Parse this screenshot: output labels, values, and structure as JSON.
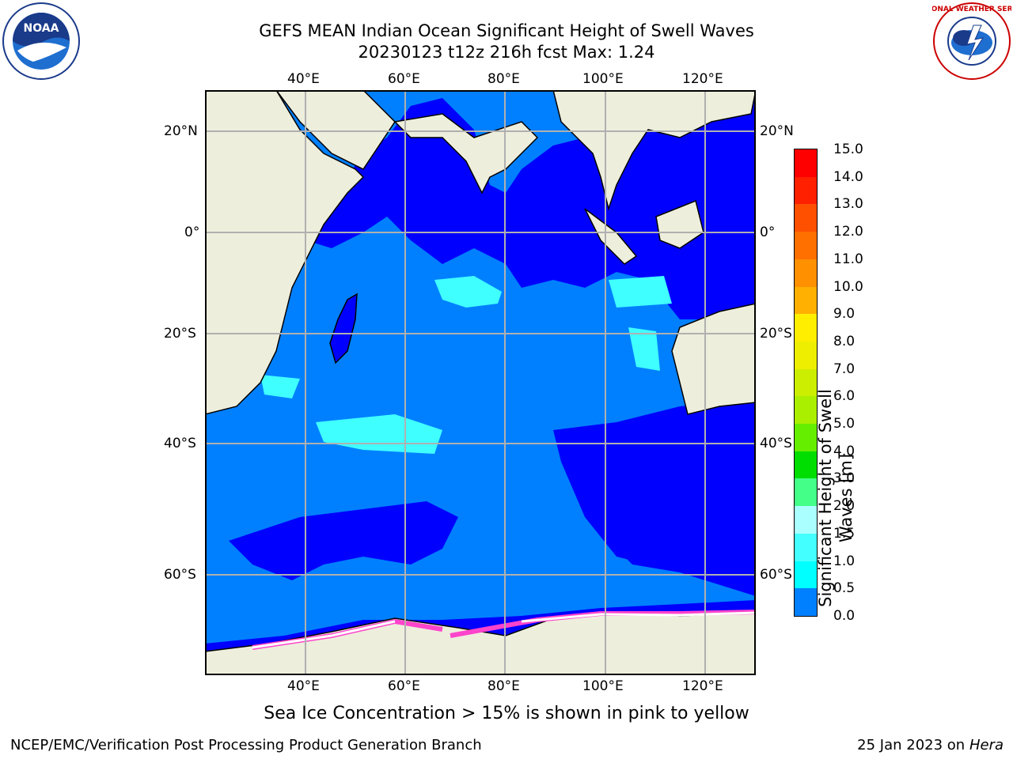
{
  "header": {
    "title_line1": "GEFS MEAN Indian Ocean Significant Height of Swell Waves",
    "title_line2": "20230123 t12z 216h fcst   Max: 1.24"
  },
  "logos": {
    "left": "NOAA",
    "right": "NATIONAL WEATHER SERVICE"
  },
  "map": {
    "lon_ticks": [
      "40°E",
      "60°E",
      "80°E",
      "100°E",
      "120°E"
    ],
    "lat_ticks_left": [
      "20°N",
      "0°",
      "20°S",
      "40°S",
      "60°S"
    ],
    "lat_ticks_right": [
      "20°N",
      "0°",
      "20°S",
      "40°S",
      "60°S"
    ],
    "colors": {
      "ocean_low": "#0000ff",
      "ocean_mid": "#0080ff",
      "ocean_cyan": "#00ffff",
      "ocean_lightcyan": "#40ffff",
      "land": "#eeeedd",
      "ice": "#ffffff",
      "ice_edge": "#ff44cc",
      "grid": "#b0b0b0"
    }
  },
  "colorbar": {
    "label": "Significant Height of Swell Waves [m]",
    "ticks": [
      "15.0",
      "14.0",
      "13.0",
      "12.0",
      "11.0",
      "10.0",
      "9.0",
      "8.0",
      "7.0",
      "6.0",
      "5.0",
      "4.0",
      "3.0",
      "2.0",
      "1.5",
      "1.0",
      "0.5",
      "0.0"
    ],
    "colors": [
      "#ff0000",
      "#ff2000",
      "#ff5000",
      "#ff7000",
      "#ff9000",
      "#ffb000",
      "#ffee00",
      "#eeee00",
      "#ccee00",
      "#aaee00",
      "#66ee00",
      "#00dd00",
      "#44ff88",
      "#aaffff",
      "#44ffff",
      "#00ffff",
      "#0080ff",
      "#0000ff"
    ]
  },
  "note": "Sea Ice Concentration > 15% is shown in pink to yellow",
  "footer": {
    "left": "NCEP/EMC/Verification Post Processing Product Generation Branch",
    "right_prefix": "25 Jan 2023 on ",
    "right_host": "Hera"
  }
}
